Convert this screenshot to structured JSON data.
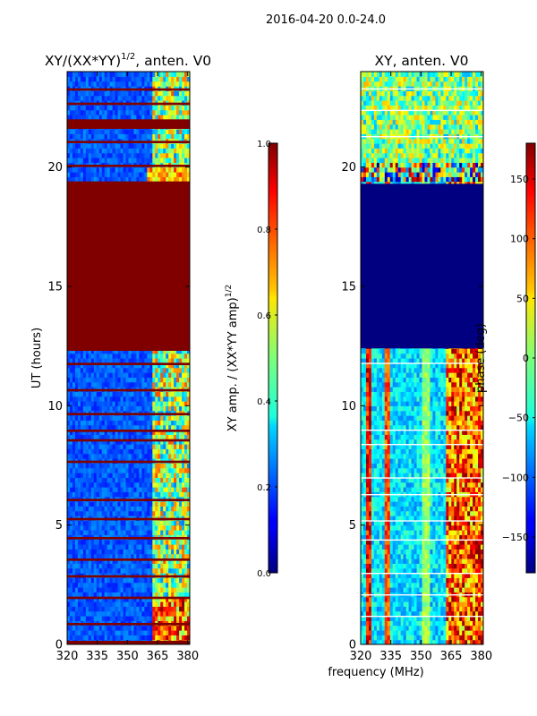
{
  "figure": {
    "suptitle": "2016-04-20 0.0-24.0",
    "xlabel": "frequency (MHz)"
  },
  "chart_data": [
    {
      "type": "heatmap",
      "title_main": "XY/(XX*YY)",
      "title_sup": "1/2",
      "title_rest": ", anten. V0",
      "ylabel": "UT (hours)",
      "xlim": [
        320,
        381
      ],
      "ylim": [
        0,
        24
      ],
      "xticks": [
        320,
        335,
        350,
        365,
        380
      ],
      "yticks": [
        0,
        5,
        10,
        15,
        20
      ],
      "colormap": "jet",
      "background_level": 0.15,
      "bands": [
        {
          "ut_start": 0.0,
          "ut_end": 0.15,
          "level": 1.0
        },
        {
          "ut_start": 0.8,
          "ut_end": 0.9,
          "level": 1.0
        },
        {
          "ut_start": 1.9,
          "ut_end": 2.0,
          "level": 1.0
        },
        {
          "ut_start": 2.8,
          "ut_end": 2.9,
          "level": 1.0
        },
        {
          "ut_start": 3.5,
          "ut_end": 3.6,
          "level": 1.0
        },
        {
          "ut_start": 4.4,
          "ut_end": 4.5,
          "level": 1.0
        },
        {
          "ut_start": 5.2,
          "ut_end": 5.3,
          "level": 1.0
        },
        {
          "ut_start": 6.0,
          "ut_end": 6.1,
          "level": 1.0
        },
        {
          "ut_start": 7.6,
          "ut_end": 7.7,
          "level": 1.0
        },
        {
          "ut_start": 8.5,
          "ut_end": 8.6,
          "level": 1.0
        },
        {
          "ut_start": 8.9,
          "ut_end": 9.0,
          "level": 1.0
        },
        {
          "ut_start": 9.6,
          "ut_end": 9.7,
          "level": 1.0
        },
        {
          "ut_start": 10.6,
          "ut_end": 10.7,
          "level": 1.0
        },
        {
          "ut_start": 11.7,
          "ut_end": 11.8,
          "level": 1.0
        },
        {
          "ut_start": 12.3,
          "ut_end": 19.4,
          "level": 1.0
        },
        {
          "ut_start": 20.0,
          "ut_end": 20.1,
          "level": 1.0
        },
        {
          "ut_start": 21.0,
          "ut_end": 21.1,
          "level": 1.0
        },
        {
          "ut_start": 21.6,
          "ut_end": 22.0,
          "level": 1.0
        },
        {
          "ut_start": 22.6,
          "ut_end": 22.7,
          "level": 1.0
        },
        {
          "ut_start": 23.2,
          "ut_end": 23.3,
          "level": 1.0
        }
      ],
      "colorbar": {
        "label_main": "XY amp. / (XX*YY amp)",
        "label_sup": "1/2",
        "range": [
          0.0,
          1.0
        ],
        "ticks": [
          "0.0",
          "0.2",
          "0.4",
          "0.6",
          "0.8",
          "1.0"
        ],
        "tick_values": [
          0.0,
          0.2,
          0.4,
          0.6,
          0.8,
          1.0
        ]
      }
    },
    {
      "type": "heatmap",
      "title": "XY, anten. V0",
      "xlim": [
        320,
        381
      ],
      "ylim": [
        0,
        24
      ],
      "xticks": [
        320,
        335,
        350,
        365,
        380
      ],
      "yticks": [
        0,
        5,
        10,
        15,
        20
      ],
      "colormap": "jet",
      "blank_band": {
        "ut_start": 12.4,
        "ut_end": 19.3,
        "value_deg": -180
      },
      "colorbar": {
        "label": "phase (deg)",
        "range": [
          -180,
          180
        ],
        "ticks": [
          "150",
          "100",
          "50",
          "0",
          "−50",
          "−100",
          "−150"
        ],
        "tick_values": [
          150,
          100,
          50,
          0,
          -50,
          -100,
          -150
        ]
      }
    }
  ]
}
